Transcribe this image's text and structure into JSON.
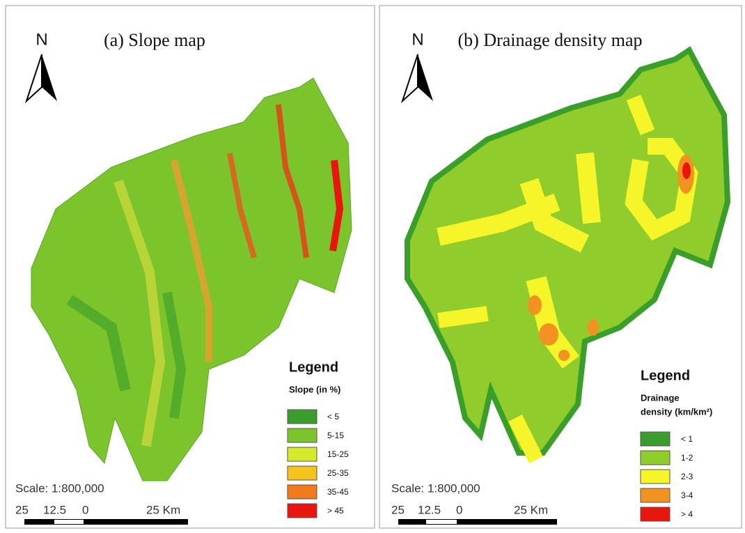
{
  "panels": [
    {
      "title": "(a) Slope map",
      "north": "N",
      "legend": {
        "title": "Legend",
        "subtitle": [
          "Slope (in %)"
        ],
        "items": [
          {
            "label": "< 5",
            "color": "#3a9e2a"
          },
          {
            "label": "5-15",
            "color": "#7cc42c"
          },
          {
            "label": "15-25",
            "color": "#d4ea2a"
          },
          {
            "label": "25-35",
            "color": "#f6c21e"
          },
          {
            "label": "35-45",
            "color": "#f07a1c"
          },
          {
            "label": "> 45",
            "color": "#e8160f"
          }
        ]
      },
      "scale": {
        "text": "Scale: 1:800,000",
        "ticks": [
          "25",
          "12.5",
          "0",
          "25 Km"
        ]
      }
    },
    {
      "title": "(b) Drainage density map",
      "north": "N",
      "legend": {
        "title": "Legend",
        "subtitle": [
          "Drainage",
          "density (km/km²)"
        ],
        "items": [
          {
            "label": "< 1",
            "color": "#3a9e2a"
          },
          {
            "label": "1-2",
            "color": "#8fcc2c"
          },
          {
            "label": "2-3",
            "color": "#f5f52a"
          },
          {
            "label": "3-4",
            "color": "#f29220"
          },
          {
            "label": "> 4",
            "color": "#e8160f"
          }
        ]
      },
      "scale": {
        "text": "Scale: 1:800,000",
        "ticks": [
          "25",
          "12.5",
          "0",
          "25 Km"
        ]
      }
    }
  ]
}
